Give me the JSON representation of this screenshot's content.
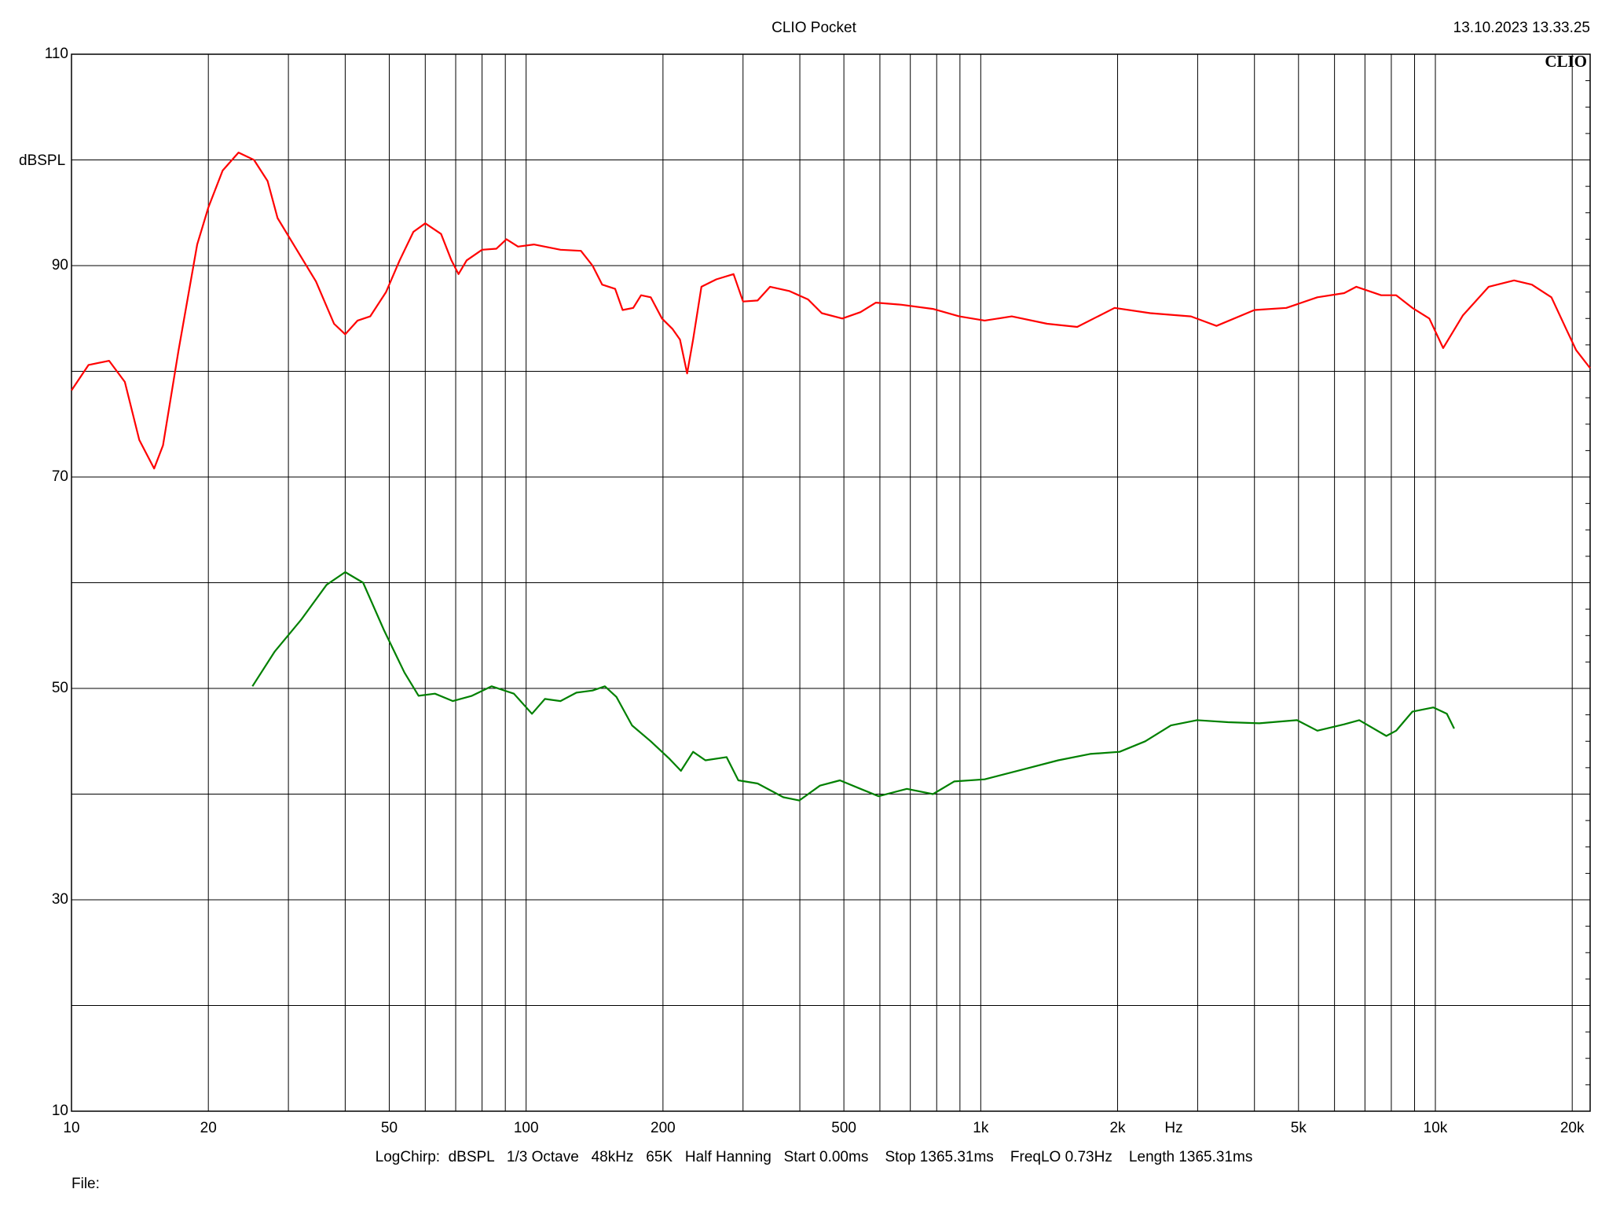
{
  "chart_data": {
    "type": "line",
    "title": "CLIO Pocket",
    "timestamp": "13.10.2023 13.33.25",
    "logo": "CLIO",
    "y_label": "dBSPL",
    "x_label": "Hz",
    "footer": "LogChirp:  dBSPL   1/3 Octave   48kHz   65K   Half Hanning   Start 0.00ms    Stop 1365.31ms    FreqLO 0.73Hz    Length 1365.31ms",
    "file_label": "File:",
    "xscale": "log",
    "grid": true,
    "xlim": [
      10,
      21900
    ],
    "ylim": [
      10,
      110
    ],
    "xticks": [
      10,
      20,
      50,
      100,
      200,
      500,
      {
        "value": 1000,
        "label": "1k"
      },
      {
        "value": 2000,
        "label": "2k"
      },
      {
        "value": 5000,
        "label": "5k"
      },
      {
        "value": 10000,
        "label": "10k"
      },
      {
        "value": 20000,
        "label": "20k"
      }
    ],
    "xminor": [
      30,
      40,
      60,
      70,
      80,
      90,
      300,
      400,
      600,
      700,
      800,
      900,
      3000,
      4000,
      6000,
      7000,
      8000,
      9000
    ],
    "yticks": [
      10,
      30,
      50,
      70,
      90,
      110
    ],
    "yminor": [
      20,
      40,
      60,
      80,
      100
    ],
    "series": [
      {
        "color": "#ff0000",
        "x": [
          10,
          10.9,
          12.1,
          13.1,
          14.1,
          15.2,
          15.9,
          17.2,
          18.9,
          20,
          21.5,
          23.3,
          25.2,
          27,
          28.4,
          30.3,
          34.5,
          37.8,
          40,
          42.6,
          45.4,
          49.2,
          52.7,
          56.5,
          60,
          65,
          68.5,
          71,
          74,
          80,
          86,
          90.5,
          96,
          104,
          119,
          132,
          140,
          147,
          157,
          163,
          172,
          179,
          188,
          199,
          210,
          218,
          226,
          233,
          243,
          262,
          286,
          300,
          323,
          344,
          379,
          417,
          447,
          496,
          544,
          588,
          670,
          785,
          897,
          1020,
          1170,
          1400,
          1630,
          1970,
          2360,
          2900,
          3300,
          4000,
          4700,
          5500,
          6300,
          6700,
          7600,
          8200,
          8900,
          9700,
          10400,
          11500,
          13100,
          14900,
          16300,
          18000,
          19400,
          20400,
          21900
        ],
        "values": [
          78.2,
          80.6,
          81,
          79,
          73.5,
          70.8,
          73,
          82,
          92,
          95.5,
          99,
          100.7,
          100,
          98,
          94.5,
          92.5,
          88.5,
          84.5,
          83.5,
          84.8,
          85.2,
          87.5,
          90.5,
          93.2,
          94,
          93,
          90.5,
          89.2,
          90.5,
          91.5,
          91.6,
          92.5,
          91.8,
          92,
          91.5,
          91.4,
          90,
          88.2,
          87.8,
          85.8,
          86,
          87.2,
          87,
          85,
          84,
          83,
          79.8,
          83,
          88,
          88.7,
          89.2,
          86.6,
          86.7,
          88,
          87.6,
          86.8,
          85.5,
          85,
          85.6,
          86.5,
          86.3,
          85.9,
          85.2,
          84.8,
          85.2,
          84.5,
          84.2,
          86,
          85.5,
          85.2,
          84.3,
          85.8,
          86,
          87,
          87.4,
          88,
          87.2,
          87.2,
          86,
          85,
          82.2,
          85.3,
          88,
          88.6,
          88.2,
          87,
          84,
          82,
          80.3
        ]
      },
      {
        "color": "#008000",
        "x": [
          25,
          28,
          32,
          36.4,
          40,
          43.8,
          48.7,
          54,
          58,
          63,
          69,
          76,
          84,
          94,
          103,
          110,
          119,
          129,
          140,
          149,
          158,
          171,
          188,
          206,
          219,
          233,
          248,
          276,
          293,
          323,
          368,
          399,
          443,
          490,
          544,
          596,
          688,
          785,
          874,
          1020,
          1230,
          1480,
          1740,
          2020,
          2300,
          2620,
          2990,
          3500,
          4100,
          4960,
          5500,
          6300,
          6800,
          7800,
          8200,
          8900,
          9900,
          10600,
          11000
        ],
        "values": [
          50.2,
          53.5,
          56.5,
          59.8,
          61,
          60,
          55.5,
          51.5,
          49.3,
          49.5,
          48.8,
          49.3,
          50.2,
          49.5,
          47.6,
          49,
          48.8,
          49.6,
          49.8,
          50.2,
          49.2,
          46.5,
          45,
          43.4,
          42.2,
          44,
          43.2,
          43.5,
          41.3,
          41,
          39.7,
          39.4,
          40.8,
          41.3,
          40.5,
          39.8,
          40.5,
          40,
          41.2,
          41.4,
          42.3,
          43.2,
          43.8,
          44,
          45,
          46.5,
          47,
          46.8,
          46.7,
          47,
          46,
          46.6,
          47,
          45.5,
          46,
          47.8,
          48.2,
          47.6,
          46.2
        ]
      }
    ]
  }
}
